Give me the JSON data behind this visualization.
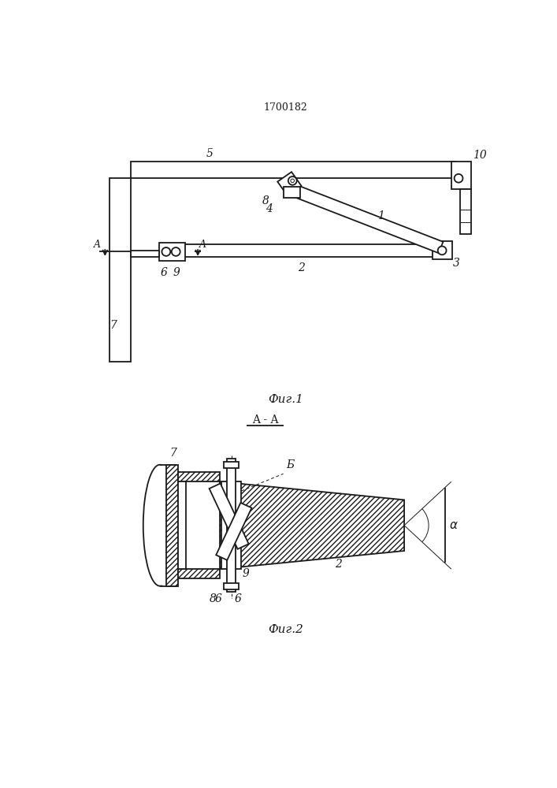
{
  "patent_number": "1700182",
  "fig1_caption": "Фиг.1",
  "fig2_caption": "Фиг.2",
  "fig2_section": "A - A",
  "bg_color": "#ffffff",
  "line_color": "#1a1a1a",
  "lw": 1.3,
  "tlw": 0.7,
  "thklw": 2.2
}
